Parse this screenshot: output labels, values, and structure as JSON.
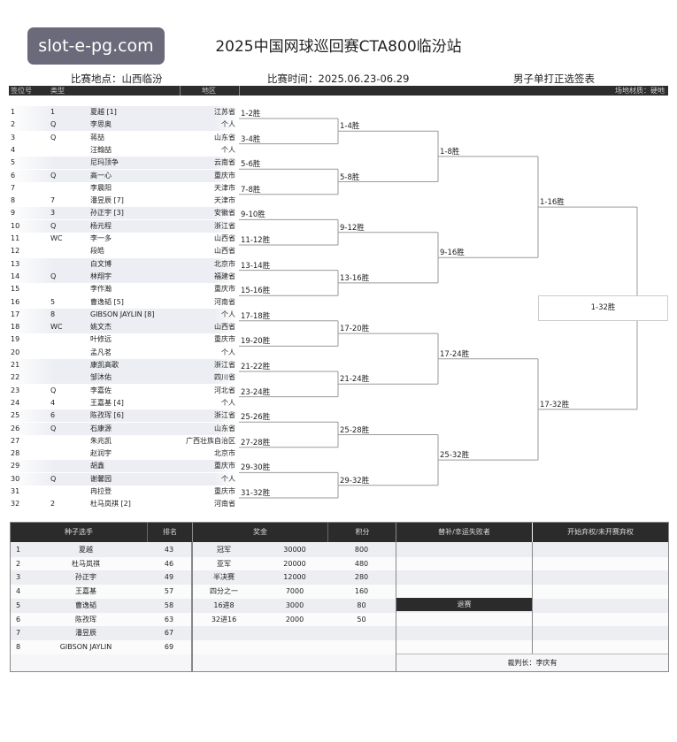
{
  "watermark": "slot-e-pg.com",
  "title": "2025中国网球巡回赛CTA800临汾站",
  "venue": "比赛地点：山西临汾",
  "dates": "比赛时间：2025.06.23-06.29",
  "draw_name": "男子单打正选签表",
  "header": {
    "draw_no": "签位号",
    "type": "类型",
    "region": "地区",
    "surface": "场地材质：硬地"
  },
  "players": [
    {
      "no": "1",
      "type": "1",
      "name": "夏越 [1]",
      "region": "江苏省"
    },
    {
      "no": "2",
      "type": "Q",
      "name": "李思奥",
      "region": "个人"
    },
    {
      "no": "3",
      "type": "Q",
      "name": "蒋喆",
      "region": "山东省"
    },
    {
      "no": "4",
      "type": "",
      "name": "汪翰喆",
      "region": "个人"
    },
    {
      "no": "5",
      "type": "",
      "name": "尼玛顶争",
      "region": "云南省"
    },
    {
      "no": "6",
      "type": "Q",
      "name": "高一心",
      "region": "重庆市"
    },
    {
      "no": "7",
      "type": "",
      "name": "李晨阳",
      "region": "天津市"
    },
    {
      "no": "8",
      "type": "7",
      "name": "潘昱辰 [7]",
      "region": "天津市"
    },
    {
      "no": "9",
      "type": "3",
      "name": "孙正宇 [3]",
      "region": "安徽省"
    },
    {
      "no": "10",
      "type": "Q",
      "name": "杨元程",
      "region": "浙江省"
    },
    {
      "no": "11",
      "type": "WC",
      "name": "李一多",
      "region": "山西省"
    },
    {
      "no": "12",
      "type": "",
      "name": "段皓",
      "region": "山西省"
    },
    {
      "no": "13",
      "type": "",
      "name": "白文博",
      "region": "北京市"
    },
    {
      "no": "14",
      "type": "Q",
      "name": "林翔宇",
      "region": "福建省"
    },
    {
      "no": "15",
      "type": "",
      "name": "李作瀚",
      "region": "重庆市"
    },
    {
      "no": "16",
      "type": "5",
      "name": "曹逸韬 [5]",
      "region": "河南省"
    },
    {
      "no": "17",
      "type": "8",
      "name": "GIBSON JAYLIN [8]",
      "region": "个人"
    },
    {
      "no": "18",
      "type": "WC",
      "name": "姚文杰",
      "region": "山西省"
    },
    {
      "no": "19",
      "type": "",
      "name": "叶修远",
      "region": "重庆市"
    },
    {
      "no": "20",
      "type": "",
      "name": "孟凡茗",
      "region": "个人"
    },
    {
      "no": "21",
      "type": "",
      "name": "康凯高歌",
      "region": "浙江省"
    },
    {
      "no": "22",
      "type": "",
      "name": "邹沐佑",
      "region": "四川省"
    },
    {
      "no": "23",
      "type": "Q",
      "name": "李嘉佐",
      "region": "河北省"
    },
    {
      "no": "24",
      "type": "4",
      "name": "王嘉基 [4]",
      "region": "个人"
    },
    {
      "no": "25",
      "type": "6",
      "name": "陈孜珲 [6]",
      "region": "浙江省"
    },
    {
      "no": "26",
      "type": "Q",
      "name": "石康源",
      "region": "山东省"
    },
    {
      "no": "27",
      "type": "",
      "name": "朱兆凯",
      "region": "广西壮族自治区"
    },
    {
      "no": "28",
      "type": "",
      "name": "赵润宇",
      "region": "北京市"
    },
    {
      "no": "29",
      "type": "",
      "name": "胡鑫",
      "region": "重庆市"
    },
    {
      "no": "30",
      "type": "Q",
      "name": "谢馨园",
      "region": "个人"
    },
    {
      "no": "31",
      "type": "",
      "name": "冉拉登",
      "region": "重庆市"
    },
    {
      "no": "32",
      "type": "2",
      "name": "杜马岚祺 [2]",
      "region": "河南省"
    }
  ],
  "bracket": {
    "round1": [
      "1-2胜",
      "3-4胜",
      "5-6胜",
      "7-8胜",
      "9-10胜",
      "11-12胜",
      "13-14胜",
      "15-16胜",
      "17-18胜",
      "19-20胜",
      "21-22胜",
      "23-24胜",
      "25-26胜",
      "27-28胜",
      "29-30胜",
      "31-32胜"
    ],
    "round2": [
      "1-4胜",
      "5-8胜",
      "9-12胜",
      "13-16胜",
      "17-20胜",
      "21-24胜",
      "25-28胜",
      "29-32胜"
    ],
    "round3": [
      "1-8胜",
      "9-16胜",
      "17-24胜",
      "25-32胜"
    ],
    "round4": [
      "1-16胜",
      "17-32胜"
    ],
    "final": "1-32胜"
  },
  "seeds": {
    "header_player": "种子选手",
    "header_rank": "排名",
    "rows": [
      {
        "seed": "1",
        "name": "夏越",
        "rank": "43"
      },
      {
        "seed": "2",
        "name": "杜马岚祺",
        "rank": "46"
      },
      {
        "seed": "3",
        "name": "孙正宇",
        "rank": "49"
      },
      {
        "seed": "4",
        "name": "王嘉基",
        "rank": "57"
      },
      {
        "seed": "5",
        "name": "曹逸韬",
        "rank": "58"
      },
      {
        "seed": "6",
        "name": "陈孜珲",
        "rank": "63"
      },
      {
        "seed": "7",
        "name": "潘昱辰",
        "rank": "67"
      },
      {
        "seed": "8",
        "name": "GIBSON JAYLIN",
        "rank": "69"
      }
    ]
  },
  "prizes": {
    "header_prize": "奖金",
    "header_points": "积分",
    "rows": [
      {
        "round": "冠军",
        "prize": "30000",
        "points": "800"
      },
      {
        "round": "亚军",
        "prize": "20000",
        "points": "480"
      },
      {
        "round": "半决赛",
        "prize": "12000",
        "points": "280"
      },
      {
        "round": "四分之一",
        "prize": "7000",
        "points": "160"
      },
      {
        "round": "16进8",
        "prize": "3000",
        "points": "80"
      },
      {
        "round": "32进16",
        "prize": "2000",
        "points": "50"
      }
    ]
  },
  "alternates_header": "替补/幸运失败者",
  "withdrawn_header": "退赛",
  "forfeit_header": "开始弃权/未开赛弃权",
  "referee": "裁判长：李庆有"
}
